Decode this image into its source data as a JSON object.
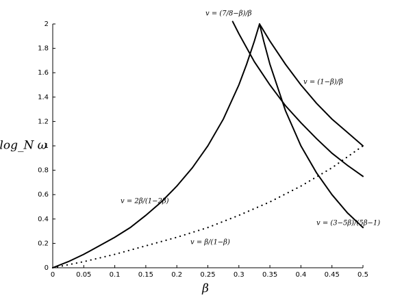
{
  "chart_data": {
    "type": "line",
    "xlabel": "β",
    "ylabel": "log_N ω",
    "xlim": [
      0,
      0.5
    ],
    "ylim": [
      0,
      2
    ],
    "xticks": [
      0,
      0.05,
      0.1,
      0.15,
      0.2,
      0.25,
      0.3,
      0.35,
      0.4,
      0.45,
      0.5
    ],
    "yticks": [
      0,
      0.2,
      0.4,
      0.6,
      0.8,
      1,
      1.2,
      1.4,
      1.6,
      1.8,
      2
    ],
    "grid": false,
    "series": [
      {
        "color": "#000000",
        "linestyle": "solid",
        "x": [
          0,
          0.025,
          0.05,
          0.075,
          0.1,
          0.125,
          0.15,
          0.175,
          0.2,
          0.225,
          0.25,
          0.275,
          0.3,
          0.3125,
          0.325,
          0.3333
        ],
        "values": [
          0,
          0.05,
          0.11,
          0.18,
          0.25,
          0.33,
          0.43,
          0.54,
          0.67,
          0.82,
          1,
          1.22,
          1.5,
          1.67,
          1.86,
          2
        ]
      },
      {
        "color": "#000000",
        "linestyle": "solid",
        "x": [
          0.3333,
          0.35,
          0.375,
          0.4,
          0.425,
          0.45,
          0.475,
          0.5
        ],
        "values": [
          2,
          1.86,
          1.67,
          1.5,
          1.35,
          1.22,
          1.11,
          1
        ]
      },
      {
        "color": "#000000",
        "linestyle": "solid",
        "x": [
          0.3333,
          0.34,
          0.35,
          0.375,
          0.4,
          0.425,
          0.45,
          0.475,
          0.5
        ],
        "values": [
          2,
          1.86,
          1.67,
          1.29,
          1,
          0.78,
          0.6,
          0.45,
          0.33
        ]
      },
      {
        "color": "#000000",
        "linestyle": "solid",
        "x": [
          0.29,
          0.3,
          0.325,
          0.35,
          0.375,
          0.4,
          0.425,
          0.45,
          0.475,
          0.5
        ],
        "values": [
          2.02,
          1.92,
          1.69,
          1.5,
          1.33,
          1.19,
          1.06,
          0.94,
          0.84,
          0.75
        ]
      },
      {
        "color": "#000000",
        "linestyle": "dotted",
        "x": [
          0,
          0.05,
          0.1,
          0.15,
          0.2,
          0.25,
          0.3,
          0.35,
          0.4,
          0.45,
          0.5
        ],
        "values": [
          0,
          0.05,
          0.11,
          0.18,
          0.25,
          0.33,
          0.43,
          0.54,
          0.67,
          0.82,
          1
        ]
      }
    ],
    "annotations": [
      "v = 2β/(1−2β)",
      "v = (1−β)/β",
      "v = (3−5β)/(5β−1)",
      "v = (7/8−β)/β",
      "v = β/(1−β)"
    ]
  }
}
